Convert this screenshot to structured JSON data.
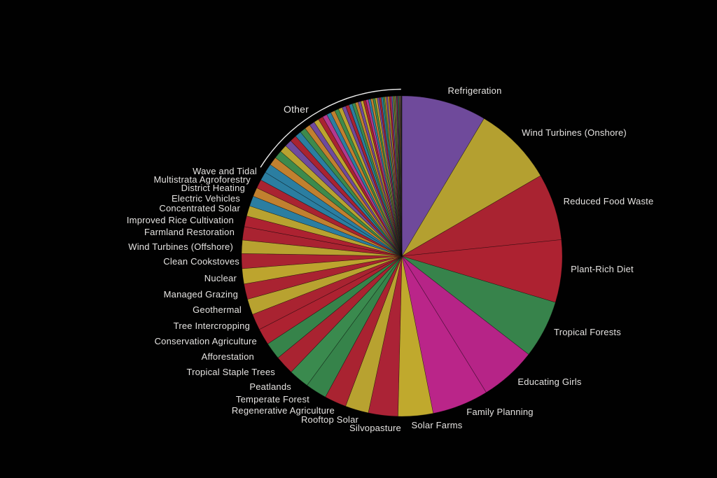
{
  "chart_data": {
    "type": "pie",
    "title": "",
    "direction": "clockwise",
    "start_angle_deg": 0,
    "background_color": "#010101",
    "label_color": "#e5e3e1",
    "bracket_color": "#eeeeee",
    "slices": [
      {
        "label": "Refrigeration",
        "value": 89.74,
        "color": "#6f4a9b"
      },
      {
        "label": "Wind Turbines (Onshore)",
        "value": 84.6,
        "color": "#b4a030"
      },
      {
        "label": "Reduced Food Waste",
        "value": 70.53,
        "color": "#a92331"
      },
      {
        "label": "Plant-Rich Diet",
        "value": 66.11,
        "color": "#ad2231"
      },
      {
        "label": "Tropical Forests",
        "value": 61.23,
        "color": "#37834b"
      },
      {
        "label": "Educating Girls",
        "value": 59.6,
        "color": "#b62487"
      },
      {
        "label": "Family Planning",
        "value": 59.6,
        "color": "#ba2589"
      },
      {
        "label": "Solar Farms",
        "value": 36.9,
        "color": "#c0a92d"
      },
      {
        "label": "Silvopasture",
        "value": 31.19,
        "color": "#ab2336"
      },
      {
        "label": "Rooftop Solar",
        "value": 24.6,
        "color": "#b8a230"
      },
      {
        "label": "Regenerative Agriculture",
        "value": 23.15,
        "color": "#a92331"
      },
      {
        "label": "Temperate Forest",
        "value": 22.61,
        "color": "#36834a"
      },
      {
        "label": "Peatlands",
        "value": 21.57,
        "color": "#3a8a4e"
      },
      {
        "label": "Tropical Staple Trees",
        "value": 20.19,
        "color": "#a92331"
      },
      {
        "label": "Afforestation",
        "value": 18.06,
        "color": "#36834a"
      },
      {
        "label": "Conservation Agriculture",
        "value": 17.35,
        "color": "#ad2231"
      },
      {
        "label": "Tree Intercropping",
        "value": 17.2,
        "color": "#a92331"
      },
      {
        "label": "Geothermal",
        "value": 16.6,
        "color": "#b8a230"
      },
      {
        "label": "Managed Grazing",
        "value": 16.34,
        "color": "#a92331"
      },
      {
        "label": "Nuclear",
        "value": 16.09,
        "color": "#bda42e"
      },
      {
        "label": "Clean Cookstoves",
        "value": 15.81,
        "color": "#a92331"
      },
      {
        "label": "Wind Turbines (Offshore)",
        "value": 14.1,
        "color": "#b8a230"
      },
      {
        "label": "Farmland Restoration",
        "value": 14.08,
        "color": "#a92331"
      },
      {
        "label": "Improved Rice Cultivation",
        "value": 11.34,
        "color": "#ad2231"
      },
      {
        "label": "Concentrated Solar",
        "value": 10.9,
        "color": "#b8a230"
      },
      {
        "label": "Electric Vehicles",
        "value": 10.8,
        "color": "#2b7ea1"
      },
      {
        "label": "District Heating",
        "value": 9.38,
        "color": "#c1802f"
      },
      {
        "label": "Multistrata Agroforestry",
        "value": 9.28,
        "color": "#a92331"
      },
      {
        "label": "Wave and Tidal",
        "value": 9.2,
        "color": "#2b7ea1"
      }
    ],
    "other": {
      "label": "Other",
      "segment_values": [
        9.6,
        9.0,
        8.4,
        7.9,
        7.4,
        7.0,
        6.6,
        6.2,
        5.9,
        5.6,
        5.3,
        5.1,
        4.9,
        4.7,
        4.5,
        4.3,
        4.1,
        3.9,
        3.7,
        3.5,
        3.3,
        3.1,
        2.9,
        2.8,
        2.7,
        2.6,
        2.5,
        2.4,
        2.3,
        2.2,
        2.1,
        2.0,
        1.9,
        1.8,
        1.7,
        1.6,
        1.5,
        1.4,
        1.3,
        1.2,
        1.1,
        1.0,
        0.95,
        0.9,
        0.85,
        0.8,
        0.75,
        0.7,
        0.65,
        0.6,
        0.55,
        0.5
      ],
      "palette": [
        "#2b7ea1",
        "#c1802f",
        "#3d8a4c",
        "#b8a230",
        "#6f4a9d",
        "#a92331",
        "#2b7ea1",
        "#3d8a4c",
        "#c1802f",
        "#6f4a9d",
        "#bda42e",
        "#a92331",
        "#b3388f"
      ],
      "final_segment_colors": [
        "#3c3c46",
        "#23232b"
      ]
    }
  }
}
